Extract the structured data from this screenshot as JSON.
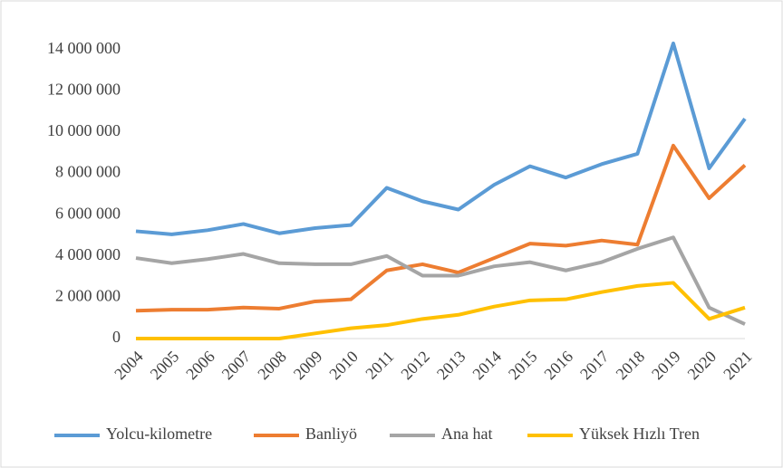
{
  "chart_data": {
    "type": "line",
    "categories": [
      "2004",
      "2005",
      "2006",
      "2007",
      "2008",
      "2009",
      "2010",
      "2011",
      "2012",
      "2013",
      "2014",
      "2015",
      "2016",
      "2017",
      "2018",
      "2019",
      "2020",
      "2021"
    ],
    "series": [
      {
        "name": "Yolcu-kilometre",
        "color": "#5b9bd5",
        "values": [
          5200000,
          5050000,
          5250000,
          5550000,
          5100000,
          5350000,
          5500000,
          7300000,
          6650000,
          6250000,
          7450000,
          8350000,
          7800000,
          8450000,
          8950000,
          14300000,
          8250000,
          10650000
        ]
      },
      {
        "name": "Banliyö",
        "color": "#ed7d31",
        "values": [
          1350000,
          1400000,
          1400000,
          1500000,
          1450000,
          1800000,
          1900000,
          3300000,
          3600000,
          3200000,
          3900000,
          4600000,
          4500000,
          4750000,
          4550000,
          9350000,
          6800000,
          8400000
        ]
      },
      {
        "name": "Ana hat",
        "color": "#a5a5a5",
        "values": [
          3900000,
          3650000,
          3850000,
          4100000,
          3650000,
          3600000,
          3600000,
          4000000,
          3050000,
          3050000,
          3500000,
          3700000,
          3300000,
          3700000,
          4350000,
          4900000,
          1500000,
          700000
        ]
      },
      {
        "name": "Yüksek Hızlı Tren",
        "color": "#ffc000",
        "values": [
          0,
          0,
          0,
          0,
          0,
          250000,
          500000,
          650000,
          950000,
          1150000,
          1550000,
          1850000,
          1900000,
          2250000,
          2550000,
          2700000,
          950000,
          1500000
        ]
      }
    ],
    "ylim": [
      0,
      15000000
    ],
    "yticks": [
      0,
      {
        "value": 2000000,
        "label": "2 000 000"
      },
      {
        "value": 4000000,
        "label": "4 000 000"
      },
      {
        "value": 6000000,
        "label": "6 000 000"
      },
      {
        "value": 8000000,
        "label": "8 000 000"
      },
      {
        "value": 10000000,
        "label": "10 000 000"
      },
      {
        "value": 12000000,
        "label": "12 000 000"
      },
      {
        "value": 14000000,
        "label": "14 000 000"
      }
    ],
    "grid": false,
    "legend": "bottom"
  }
}
